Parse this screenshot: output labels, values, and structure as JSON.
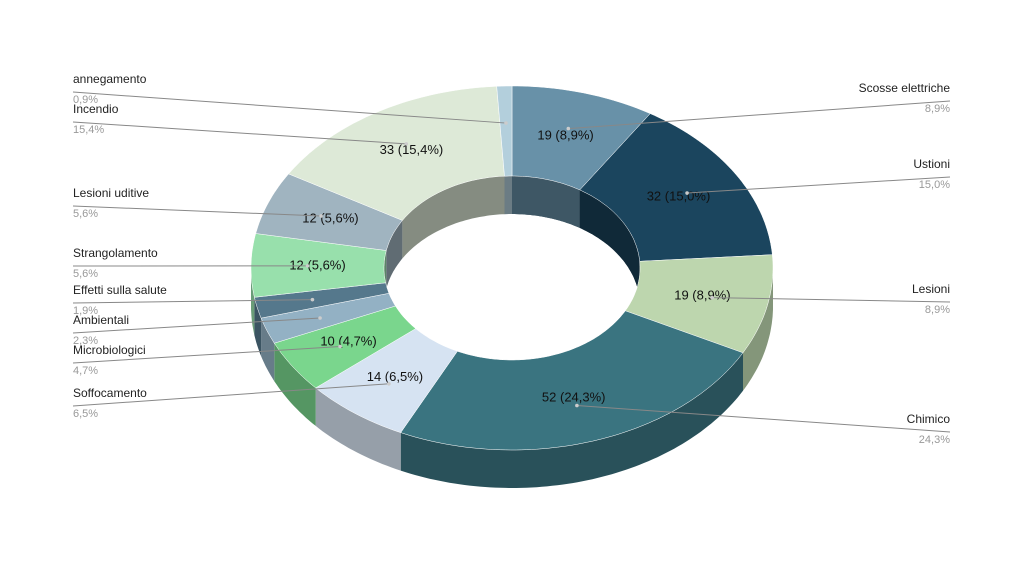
{
  "chart_data": {
    "type": "donut3d",
    "categories": [
      "Scosse elettriche",
      "Ustioni",
      "Lesioni",
      "Chimico",
      "Soffocamento",
      "Microbiologici",
      "Ambientali",
      "Effetti sulla salute",
      "Strangolamento",
      "Lesioni uditive",
      "Incendio",
      "annegamento"
    ],
    "values": [
      19,
      32,
      19,
      52,
      14,
      10,
      5,
      4,
      12,
      12,
      33,
      2
    ],
    "value_labels": [
      "19 (8,9%)",
      "32 (15,0%)",
      "19 (8,9%)",
      "52 (24,3%)",
      "14 (6,5%)",
      "10 (4,7%)",
      null,
      null,
      "12 (5,6%)",
      "12 (5,6%)",
      "33 (15,4%)",
      null
    ],
    "percent_labels": [
      "8,9%",
      "15,0%",
      "8,9%",
      "24,3%",
      "6,5%",
      "4,7%",
      "2,3%",
      "1,9%",
      "5,6%",
      "5,6%",
      "15,4%",
      "0,9%"
    ],
    "colors": [
      "#6891a8",
      "#1b455e",
      "#bdd6ae",
      "#3a7480",
      "#d6e3f2",
      "#7ad68d",
      "#93b1c4",
      "#55788c",
      "#98e0ac",
      "#a0b4c0",
      "#dde9d7",
      "#b3cfdc"
    ]
  }
}
